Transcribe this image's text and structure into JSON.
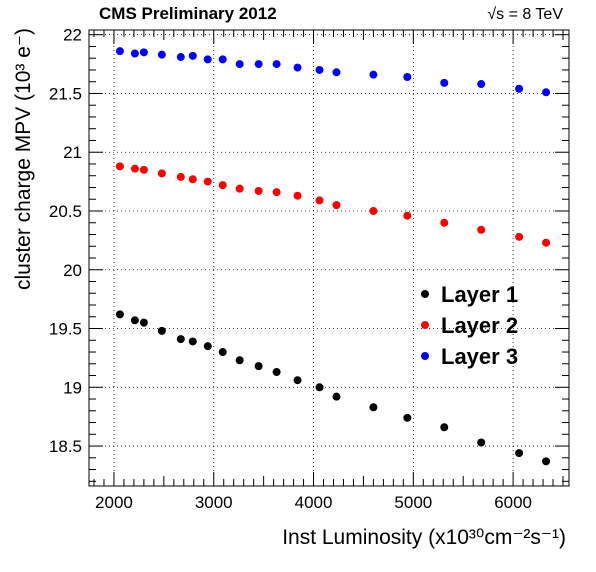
{
  "chart_data": {
    "type": "scatter",
    "header_left": "CMS Preliminary 2012",
    "header_right": "√s = 8 TeV",
    "xlabel": "Inst Luminosity (x10³⁰cm⁻²s⁻¹)",
    "ylabel": "cluster charge MPV (10³ e⁻)",
    "xlim": [
      1750,
      6560
    ],
    "ylim": [
      18.16,
      22.04
    ],
    "x_ticks": [
      2000,
      3000,
      4000,
      5000,
      6000
    ],
    "x_tick_labels": [
      "2000",
      "3000",
      "4000",
      "5000",
      "6000"
    ],
    "y_ticks": [
      18.5,
      19,
      19.5,
      20,
      20.5,
      21,
      21.5,
      22
    ],
    "y_tick_labels": [
      "18.5",
      "19",
      "19.5",
      "20",
      "20.5",
      "21",
      "21.5",
      "22"
    ],
    "grid": true,
    "legend_position": "right-center",
    "series": [
      {
        "name": "Layer 1",
        "color": "#000000",
        "x": [
          2060,
          2210,
          2300,
          2480,
          2670,
          2790,
          2940,
          3090,
          3260,
          3450,
          3630,
          3840,
          4060,
          4230,
          4600,
          4940,
          5310,
          5680,
          6060,
          6330
        ],
        "y": [
          19.62,
          19.57,
          19.55,
          19.48,
          19.41,
          19.39,
          19.35,
          19.3,
          19.23,
          19.18,
          19.13,
          19.06,
          19.0,
          18.92,
          18.83,
          18.74,
          18.66,
          18.53,
          18.44,
          18.37
        ]
      },
      {
        "name": "Layer 2",
        "color": "#ff0000",
        "x": [
          2060,
          2210,
          2300,
          2480,
          2670,
          2790,
          2940,
          3090,
          3260,
          3450,
          3630,
          3840,
          4060,
          4230,
          4600,
          4940,
          5310,
          5680,
          6060,
          6330
        ],
        "y": [
          20.88,
          20.86,
          20.85,
          20.82,
          20.79,
          20.77,
          20.75,
          20.72,
          20.69,
          20.67,
          20.66,
          20.63,
          20.59,
          20.55,
          20.5,
          20.46,
          20.4,
          20.34,
          20.28,
          20.23
        ]
      },
      {
        "name": "Layer 3",
        "color": "#0000ff",
        "x": [
          2060,
          2210,
          2300,
          2480,
          2670,
          2790,
          2940,
          3090,
          3260,
          3450,
          3630,
          3840,
          4060,
          4230,
          4600,
          4940,
          5310,
          5680,
          6060,
          6330
        ],
        "y": [
          21.86,
          21.84,
          21.85,
          21.83,
          21.81,
          21.82,
          21.79,
          21.79,
          21.75,
          21.75,
          21.75,
          21.72,
          21.7,
          21.68,
          21.66,
          21.64,
          21.59,
          21.58,
          21.54,
          21.51
        ]
      }
    ]
  }
}
